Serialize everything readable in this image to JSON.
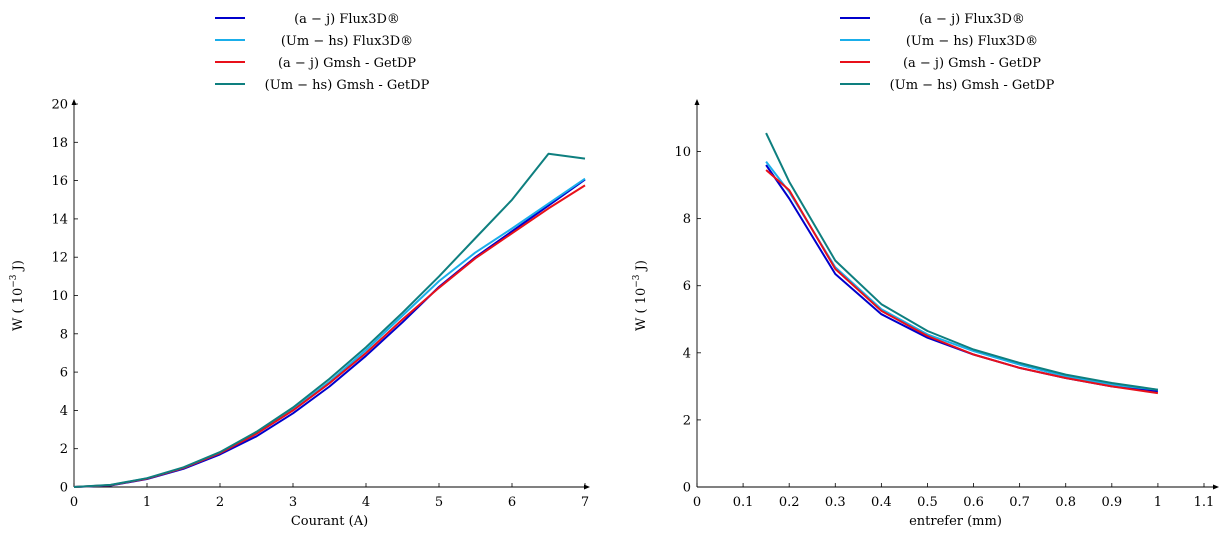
{
  "chart_data": [
    {
      "type": "line",
      "xlabel": "Courant (A)",
      "ylabel": "W ( 10",
      "ylabel_sup": "−3",
      "ylabel_tail": " J)",
      "xlim": [
        0,
        7
      ],
      "ylim": [
        0,
        20
      ],
      "xticks": [
        0,
        1,
        2,
        3,
        4,
        5,
        6,
        7
      ],
      "yticks": [
        0,
        2,
        4,
        6,
        8,
        10,
        12,
        14,
        16,
        18,
        20
      ],
      "legend": "top-center",
      "series": [
        {
          "name": "(a − j) Flux3D®",
          "color": "#0000cc",
          "x": [
            0,
            0.5,
            1,
            1.5,
            2,
            2.5,
            3,
            3.5,
            4,
            4.5,
            5,
            5.5,
            6,
            6.5,
            7
          ],
          "y": [
            0,
            0.08,
            0.42,
            0.95,
            1.7,
            2.65,
            3.85,
            5.25,
            6.85,
            8.6,
            10.45,
            12.0,
            13.35,
            14.7,
            16.05
          ]
        },
        {
          "name": "(Um − hs) Flux3D®",
          "color": "#1aaeea",
          "x": [
            0,
            0.5,
            1,
            1.5,
            2,
            2.5,
            3,
            3.5,
            4,
            4.5,
            5,
            5.5,
            6,
            6.5,
            7
          ],
          "y": [
            0,
            0.1,
            0.45,
            1.0,
            1.78,
            2.8,
            4.05,
            5.5,
            7.15,
            8.95,
            10.75,
            12.25,
            13.5,
            14.8,
            16.1
          ]
        },
        {
          "name": "(a − j) Gmsh - GetDP",
          "color": "#e8101a",
          "x": [
            0,
            0.5,
            1,
            1.5,
            2,
            2.5,
            3,
            3.5,
            4,
            4.5,
            5,
            5.5,
            6,
            6.5,
            7
          ],
          "y": [
            0,
            0.1,
            0.44,
            1.0,
            1.77,
            2.78,
            4.0,
            5.42,
            7.0,
            8.75,
            10.4,
            11.95,
            13.25,
            14.55,
            15.75
          ]
        },
        {
          "name": "(Um − hs) Gmsh - GetDP",
          "color": "#0e7f7f",
          "x": [
            0,
            0.5,
            1,
            1.5,
            2,
            2.5,
            3,
            3.5,
            4,
            4.5,
            5,
            5.5,
            6,
            6.5,
            7
          ],
          "y": [
            0,
            0.11,
            0.46,
            1.03,
            1.82,
            2.88,
            4.15,
            5.65,
            7.3,
            9.1,
            11.0,
            13.0,
            15.0,
            17.4,
            17.15
          ]
        }
      ]
    },
    {
      "type": "line",
      "xlabel": "entrefer (mm)",
      "ylabel": "W ( 10",
      "ylabel_sup": "−3",
      "ylabel_tail": " J)",
      "xlim": [
        0,
        1.1
      ],
      "ylim": [
        0,
        11
      ],
      "xticks": [
        0,
        0.1,
        0.2,
        0.3,
        0.4,
        0.5,
        0.6,
        0.7,
        0.8,
        0.9,
        1,
        1.1
      ],
      "yticks": [
        0,
        2,
        4,
        6,
        8,
        10
      ],
      "legend": "top-center",
      "series": [
        {
          "name": "(a − j) Flux3D®",
          "color": "#0000cc",
          "x": [
            0.15,
            0.2,
            0.3,
            0.4,
            0.5,
            0.6,
            0.7,
            0.8,
            0.9,
            1.0
          ],
          "y": [
            9.6,
            8.6,
            6.35,
            5.15,
            4.45,
            3.95,
            3.55,
            3.25,
            3.0,
            2.85
          ]
        },
        {
          "name": "(Um − hs) Flux3D®",
          "color": "#1aaeea",
          "x": [
            0.15,
            0.2,
            0.3,
            0.4,
            0.5,
            0.6,
            0.7,
            0.8,
            0.9,
            1.0
          ],
          "y": [
            9.7,
            8.8,
            6.55,
            5.3,
            4.55,
            4.05,
            3.65,
            3.3,
            3.05,
            2.9
          ]
        },
        {
          "name": "(a − j) Gmsh - GetDP",
          "color": "#e8101a",
          "x": [
            0.15,
            0.2,
            0.3,
            0.4,
            0.5,
            0.6,
            0.7,
            0.8,
            0.9,
            1.0
          ],
          "y": [
            9.45,
            8.85,
            6.5,
            5.25,
            4.5,
            3.95,
            3.55,
            3.25,
            3.0,
            2.8
          ]
        },
        {
          "name": "(Um − hs) Gmsh - GetDP",
          "color": "#0e7f7f",
          "x": [
            0.15,
            0.2,
            0.3,
            0.4,
            0.5,
            0.6,
            0.7,
            0.8,
            0.9,
            1.0
          ],
          "y": [
            10.55,
            9.1,
            6.75,
            5.45,
            4.65,
            4.1,
            3.7,
            3.35,
            3.1,
            2.9
          ]
        }
      ]
    }
  ]
}
